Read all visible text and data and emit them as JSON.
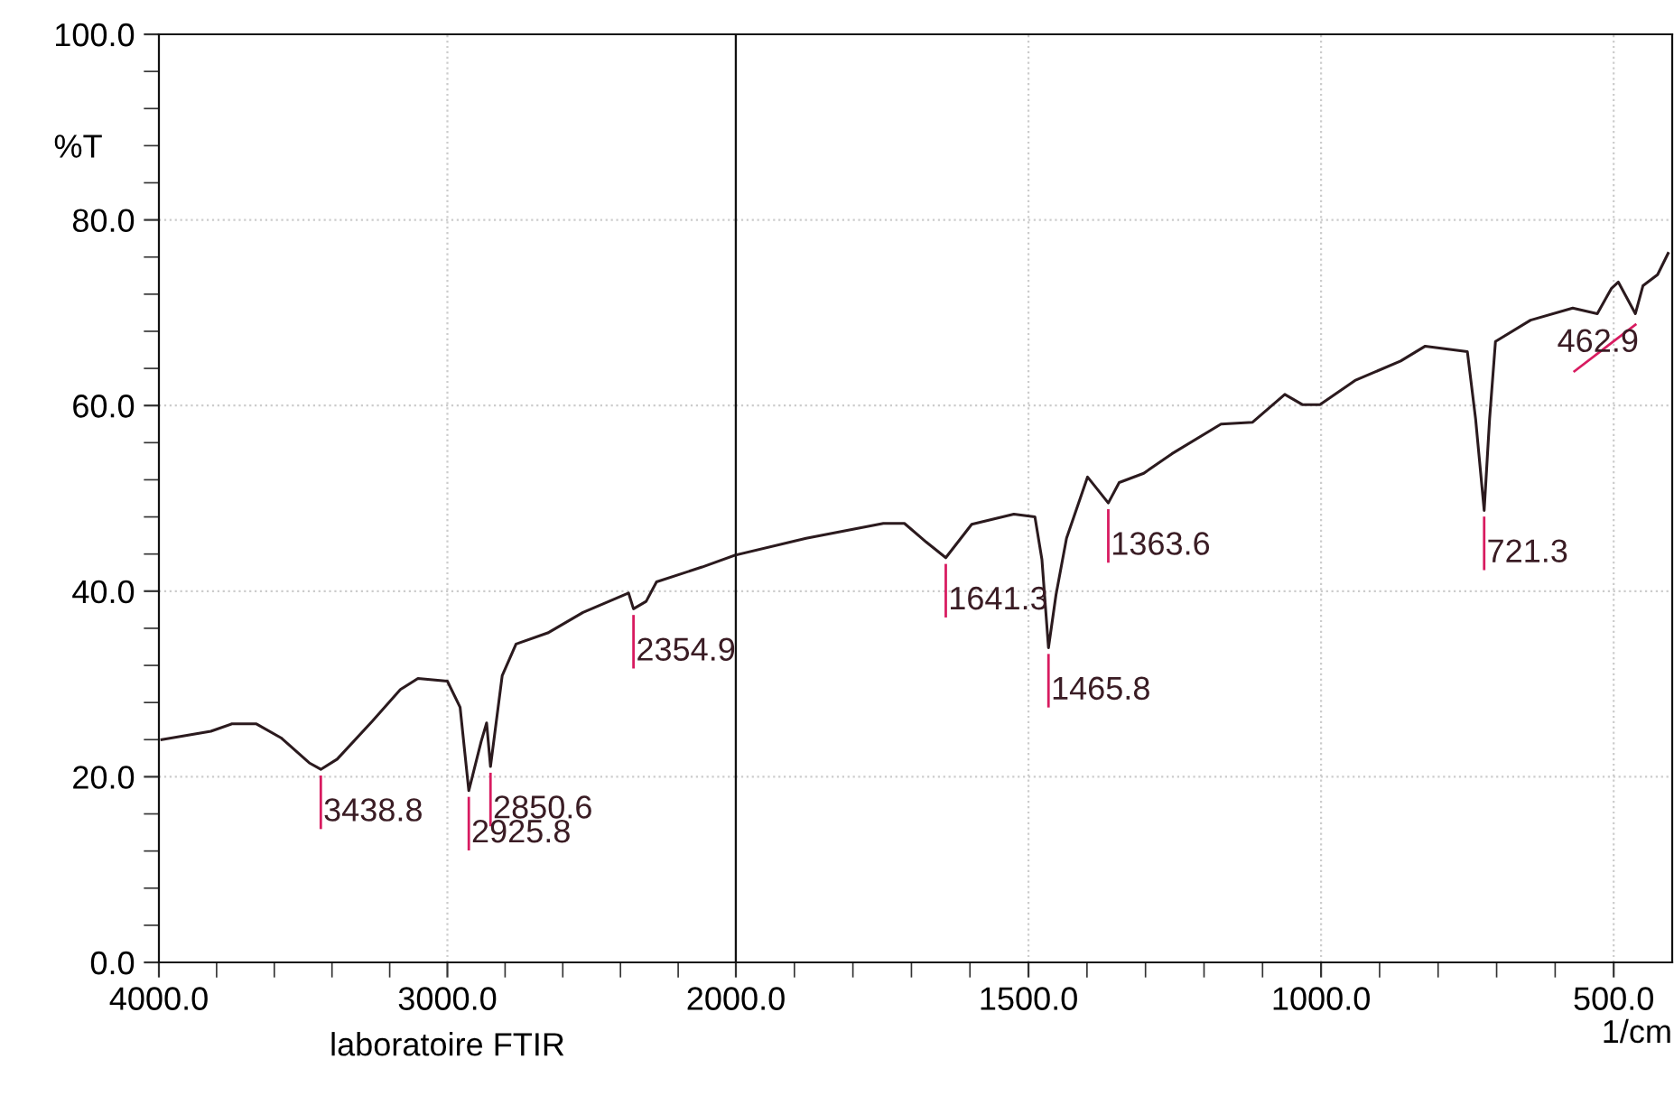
{
  "chart_data": [
    {
      "type": "line",
      "ylabel": "%T",
      "series": [
        {
          "color": "#2b1a1e",
          "x": [
            3990,
            3820,
            3747,
            3662,
            3577,
            3479,
            3438.8,
            3382,
            3260,
            3163,
            3102,
            3000,
            2956,
            2925.8,
            2883,
            2864,
            2850.6,
            2810,
            2762,
            2652,
            2530,
            2372,
            2354.9,
            2311,
            2275,
            2117,
            2000
          ],
          "values": [
            24.0,
            24.9,
            25.7,
            25.7,
            24.2,
            21.5,
            20.8,
            21.9,
            26.0,
            29.4,
            30.6,
            30.3,
            27.5,
            18.5,
            23.8,
            25.8,
            21.1,
            30.9,
            34.3,
            35.5,
            37.7,
            39.8,
            38.1,
            38.9,
            41.0,
            42.6,
            43.9
          ]
        }
      ],
      "xlim": [
        4000,
        2000
      ],
      "ylim": [
        0,
        100
      ],
      "xticks": [
        {
          "value": 4000,
          "label": "4000.0"
        },
        {
          "value": 3800,
          "label": null
        },
        {
          "value": 3600,
          "label": null
        },
        {
          "value": 3400,
          "label": null
        },
        {
          "value": 3200,
          "label": null
        },
        {
          "value": 3000,
          "label": "3000.0"
        },
        {
          "value": 2800,
          "label": null
        },
        {
          "value": 2600,
          "label": null
        },
        {
          "value": 2400,
          "label": null
        },
        {
          "value": 2200,
          "label": null
        },
        {
          "value": 2000,
          "label": "2000.0"
        }
      ],
      "yticks": [
        {
          "value": 0,
          "label": "0.0"
        },
        {
          "value": 4,
          "label": null
        },
        {
          "value": 8,
          "label": null
        },
        {
          "value": 12,
          "label": null
        },
        {
          "value": 16,
          "label": null
        },
        {
          "value": 20,
          "label": "20.0"
        },
        {
          "value": 24,
          "label": null
        },
        {
          "value": 28,
          "label": null
        },
        {
          "value": 32,
          "label": null
        },
        {
          "value": 36,
          "label": null
        },
        {
          "value": 40,
          "label": "40.0"
        },
        {
          "value": 44,
          "label": null
        },
        {
          "value": 48,
          "label": null
        },
        {
          "value": 52,
          "label": null
        },
        {
          "value": 56,
          "label": null
        },
        {
          "value": 60,
          "label": "60.0"
        },
        {
          "value": 64,
          "label": null
        },
        {
          "value": 68,
          "label": null
        },
        {
          "value": 72,
          "label": null
        },
        {
          "value": 76,
          "label": null
        },
        {
          "value": 80,
          "label": "80.0"
        },
        {
          "value": 84,
          "label": null
        },
        {
          "value": 88,
          "label": null
        },
        {
          "value": 92,
          "label": null
        },
        {
          "value": 96,
          "label": null
        },
        {
          "value": 100,
          "label": "100.0"
        }
      ],
      "grid": true,
      "annotations": [
        {
          "text": "3438.8",
          "x": 3438.8,
          "y": 20.8
        },
        {
          "text": "2925.8",
          "x": 2925.8,
          "y": 18.5
        },
        {
          "text": "2850.6",
          "x": 2850.6,
          "y": 21.1
        },
        {
          "text": "2354.9",
          "x": 2354.9,
          "y": 38.1
        },
        "laboratoire FTIR"
      ]
    },
    {
      "type": "line",
      "xlabel": "1/cm",
      "series": [
        {
          "color": "#2b1a1e",
          "x": [
            2000,
            1880,
            1748,
            1712,
            1675,
            1641.3,
            1597,
            1525,
            1489,
            1477,
            1465.8,
            1453,
            1435,
            1399,
            1363.6,
            1345,
            1303,
            1255,
            1171,
            1117,
            1062,
            1032,
            1002,
            942,
            864,
            822,
            750,
            736,
            721.3,
            712,
            702,
            642,
            570,
            528,
            504,
            492,
            462.9,
            450,
            425,
            407
          ],
          "values": [
            43.9,
            45.7,
            47.3,
            47.3,
            45.3,
            43.6,
            47.2,
            48.3,
            48.0,
            43.4,
            33.9,
            39.6,
            45.7,
            52.3,
            49.5,
            51.7,
            52.7,
            54.8,
            58.0,
            58.2,
            61.2,
            60.1,
            60.1,
            62.7,
            64.8,
            66.4,
            65.8,
            58.6,
            48.7,
            58.6,
            66.9,
            69.2,
            70.5,
            69.9,
            72.6,
            73.3,
            69.9,
            72.9,
            74.1,
            76.4
          ]
        }
      ],
      "xlim": [
        2000,
        400
      ],
      "ylim": [
        0,
        100
      ],
      "xticks": [
        {
          "value": 1900,
          "label": null
        },
        {
          "value": 1800,
          "label": null
        },
        {
          "value": 1700,
          "label": null
        },
        {
          "value": 1600,
          "label": null
        },
        {
          "value": 1500,
          "label": "1500.0"
        },
        {
          "value": 1400,
          "label": null
        },
        {
          "value": 1300,
          "label": null
        },
        {
          "value": 1200,
          "label": null
        },
        {
          "value": 1100,
          "label": null
        },
        {
          "value": 1000,
          "label": "1000.0"
        },
        {
          "value": 900,
          "label": null
        },
        {
          "value": 800,
          "label": null
        },
        {
          "value": 700,
          "label": null
        },
        {
          "value": 600,
          "label": null
        },
        {
          "value": 500,
          "label": "500.0"
        }
      ],
      "yticks": [
        {
          "value": 20,
          "label": null
        },
        {
          "value": 40,
          "label": null
        },
        {
          "value": 60,
          "label": null
        },
        {
          "value": 80,
          "label": null
        }
      ],
      "tick_labels": "x",
      "grid": true,
      "annotations": [
        {
          "text": "1641.3",
          "x": 1641.3,
          "y": 43.6
        },
        {
          "text": "1465.8",
          "x": 1465.8,
          "y": 33.9
        },
        {
          "text": "1363.6",
          "x": 1363.6,
          "y": 49.5
        },
        {
          "text": "721.3",
          "x": 721.3,
          "y": 48.7
        },
        {
          "text": "462.9",
          "x": 462.9,
          "y": 69.9
        }
      ]
    }
  ]
}
